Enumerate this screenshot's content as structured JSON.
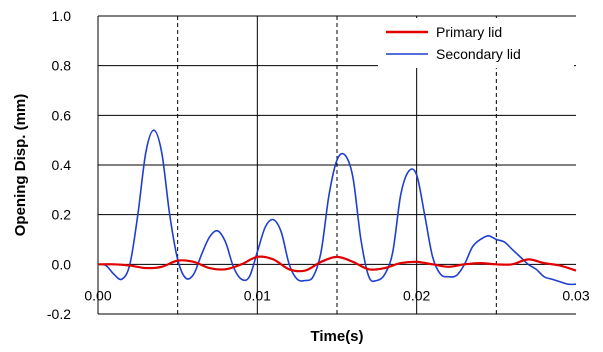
{
  "chart_data": {
    "type": "line",
    "title": "",
    "xlabel": "Time(s)",
    "ylabel": "Opening Disp. (mm)",
    "xlim": [
      0,
      0.03
    ],
    "ylim": [
      -0.2,
      1.0
    ],
    "x_ticks": [
      0.0,
      0.01,
      0.02,
      0.03
    ],
    "x_tick_labels": [
      "0.00",
      "0.01",
      "0.02",
      "0.03"
    ],
    "y_ticks": [
      -0.2,
      0.0,
      0.2,
      0.4,
      0.6,
      0.8,
      1.0
    ],
    "y_tick_labels": [
      "-0.2",
      "0.0",
      "0.2",
      "0.4",
      "0.6",
      "0.8",
      "1.0"
    ],
    "grid": {
      "horizontal": "solid",
      "vertical_major": "solid",
      "vertical_minor": "dashed",
      "vertical_minor_at": [
        0.005,
        0.015,
        0.025
      ]
    },
    "legend_position": "top-right",
    "series": [
      {
        "name": "Primary lid",
        "color": "#e00000",
        "x": [
          0.0,
          0.001,
          0.002,
          0.003,
          0.004,
          0.005,
          0.006,
          0.007,
          0.008,
          0.009,
          0.01,
          0.011,
          0.012,
          0.013,
          0.014,
          0.015,
          0.016,
          0.017,
          0.018,
          0.019,
          0.02,
          0.021,
          0.022,
          0.023,
          0.024,
          0.025,
          0.026,
          0.027,
          0.028,
          0.029,
          0.03
        ],
        "y": [
          0.0,
          0.0,
          -0.005,
          -0.015,
          -0.01,
          0.015,
          0.01,
          -0.015,
          -0.02,
          0.0,
          0.03,
          0.02,
          -0.02,
          -0.025,
          0.01,
          0.03,
          0.01,
          -0.02,
          -0.015,
          0.005,
          0.01,
          0.0,
          -0.01,
          0.0,
          0.005,
          0.0,
          0.0,
          0.02,
          0.005,
          -0.005,
          -0.025
        ]
      },
      {
        "name": "Secondary lid",
        "color": "#1f3fd0",
        "x": [
          0.0,
          0.0005,
          0.001,
          0.0015,
          0.002,
          0.0025,
          0.003,
          0.0035,
          0.004,
          0.0045,
          0.005,
          0.0055,
          0.006,
          0.0065,
          0.007,
          0.0075,
          0.008,
          0.0085,
          0.009,
          0.0095,
          0.01,
          0.0105,
          0.011,
          0.0115,
          0.012,
          0.0125,
          0.013,
          0.0135,
          0.014,
          0.0145,
          0.015,
          0.0155,
          0.016,
          0.0165,
          0.017,
          0.0175,
          0.018,
          0.0185,
          0.019,
          0.0195,
          0.02,
          0.0205,
          0.021,
          0.0215,
          0.022,
          0.0225,
          0.023,
          0.0235,
          0.024,
          0.0245,
          0.025,
          0.0255,
          0.026,
          0.0265,
          0.027,
          0.0275,
          0.028,
          0.0285,
          0.029,
          0.0295,
          0.03
        ],
        "y": [
          0.0,
          -0.005,
          -0.04,
          -0.06,
          0.0,
          0.2,
          0.45,
          0.54,
          0.45,
          0.2,
          0.02,
          -0.055,
          -0.04,
          0.04,
          0.11,
          0.135,
          0.09,
          -0.01,
          -0.06,
          -0.05,
          0.05,
          0.15,
          0.18,
          0.13,
          0.0,
          -0.06,
          -0.065,
          -0.05,
          0.05,
          0.28,
          0.42,
          0.44,
          0.35,
          0.1,
          -0.05,
          -0.065,
          -0.04,
          0.05,
          0.28,
          0.375,
          0.36,
          0.2,
          0.03,
          -0.04,
          -0.05,
          -0.045,
          0.0,
          0.07,
          0.1,
          0.115,
          0.1,
          0.09,
          0.06,
          0.03,
          0.0,
          -0.02,
          -0.05,
          -0.06,
          -0.07,
          -0.08,
          -0.08
        ]
      }
    ]
  }
}
